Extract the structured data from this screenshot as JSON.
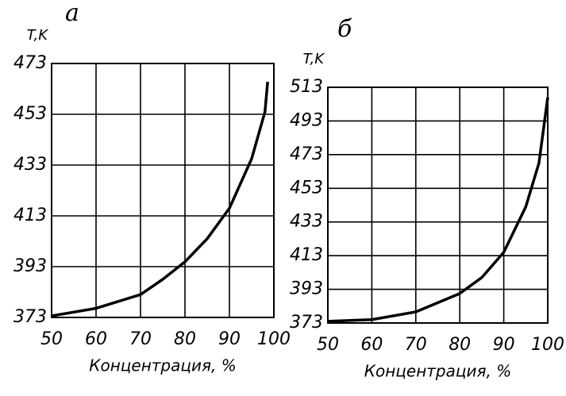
{
  "chart_data": [
    {
      "type": "line",
      "title": "а",
      "y_label": "T,K",
      "x_label": "Концентрация, %",
      "x": [
        50,
        60,
        70,
        75,
        80,
        85,
        90,
        95,
        98,
        98.6
      ],
      "values": [
        373.6,
        376.6,
        382,
        388,
        394.9,
        404,
        416,
        435.5,
        454,
        465.8
      ],
      "color": "#000000",
      "xlim": [
        50,
        100
      ],
      "xticks": [
        50,
        60,
        70,
        80,
        90,
        100
      ],
      "ylim": [
        373,
        473
      ],
      "yticks": [
        373,
        393,
        413,
        433,
        453,
        473
      ],
      "grid": true
    },
    {
      "type": "line",
      "title": "б",
      "y_label": "T,K",
      "x_label": "Концентрация, %",
      "x": [
        50,
        60,
        70,
        80,
        85,
        90,
        95,
        98,
        100
      ],
      "values": [
        374,
        375,
        379.6,
        390.5,
        400,
        415,
        442,
        468,
        507
      ],
      "color": "#000000",
      "xlim": [
        50,
        100
      ],
      "xticks": [
        50,
        60,
        70,
        80,
        90,
        100
      ],
      "ylim": [
        373,
        513
      ],
      "yticks": [
        373,
        393,
        413,
        433,
        453,
        473,
        493,
        513
      ],
      "grid": true
    }
  ]
}
